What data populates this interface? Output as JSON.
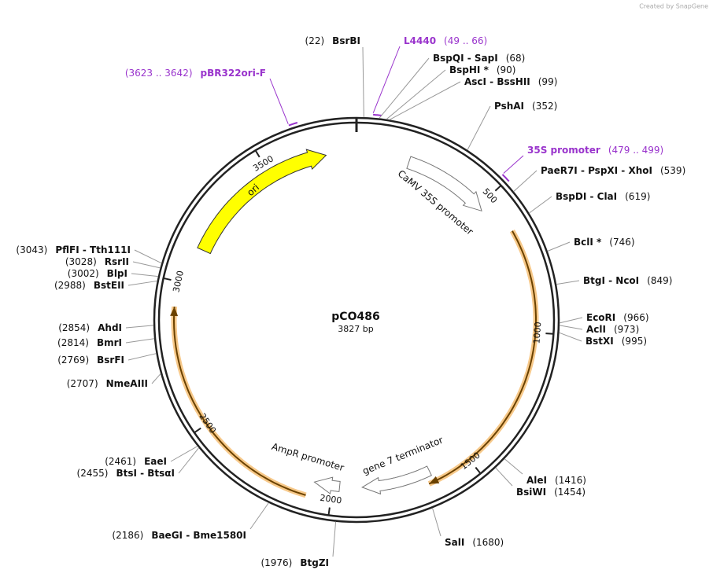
{
  "watermark": "Created by SnapGene",
  "map": {
    "name": "pCO486",
    "length": "3827 bp"
  },
  "scale": {
    "ticks": [
      500,
      1000,
      1500,
      2000,
      2500,
      3000,
      3500
    ]
  },
  "features": [
    {
      "label": "ori"
    },
    {
      "label": "CaMV 35S promoter"
    },
    {
      "label": "gene 7 terminator"
    },
    {
      "label": "AmpR promoter"
    }
  ],
  "primers": [
    {
      "name": "L4440",
      "position": "(49 .. 66)"
    },
    {
      "name": "35S promoter",
      "position": "(479 .. 499)"
    },
    {
      "name": "pBR322ori-F",
      "position": "(3623 .. 3642)"
    }
  ],
  "sites": [
    {
      "enzymes": "BsrBI",
      "position": "(22)"
    },
    {
      "enzymes": "BspQI - SapI",
      "position": "(68)"
    },
    {
      "enzymes": "BspHI *",
      "position": "(90)"
    },
    {
      "enzymes": "AscI - BssHII",
      "position": "(99)"
    },
    {
      "enzymes": "PshAI",
      "position": "(352)"
    },
    {
      "enzymes": "PaeR7I - PspXI - XhoI",
      "position": "(539)"
    },
    {
      "enzymes": "BspDI - ClaI",
      "position": "(619)"
    },
    {
      "enzymes": "BclI *",
      "position": "(746)"
    },
    {
      "enzymes": "BtgI - NcoI",
      "position": "(849)"
    },
    {
      "enzymes": "EcoRI",
      "position": "(966)"
    },
    {
      "enzymes": "AclI",
      "position": "(973)"
    },
    {
      "enzymes": "BstXI",
      "position": "(995)"
    },
    {
      "enzymes": "AleI",
      "position": "(1416)"
    },
    {
      "enzymes": "BsiWI",
      "position": "(1454)"
    },
    {
      "enzymes": "SalI",
      "position": "(1680)"
    },
    {
      "enzymes": "BtgZI",
      "position": "(1976)"
    },
    {
      "enzymes": "BaeGI - Bme1580I",
      "position": "(2186)"
    },
    {
      "enzymes": "EaeI",
      "position": "(2461)"
    },
    {
      "enzymes": "BtsI - BtsαI",
      "position": "(2455)"
    },
    {
      "enzymes": "NmeAIII",
      "position": "(2707)"
    },
    {
      "enzymes": "BsrFI",
      "position": "(2769)"
    },
    {
      "enzymes": "BmrI",
      "position": "(2814)"
    },
    {
      "enzymes": "AhdI",
      "position": "(2854)"
    },
    {
      "enzymes": "BstEII",
      "position": "(2988)"
    },
    {
      "enzymes": "BlpI",
      "position": "(3002)"
    },
    {
      "enzymes": "RsrII",
      "position": "(3028)"
    },
    {
      "enzymes": "PflFI - Tth111I",
      "position": "(3043)"
    }
  ]
}
